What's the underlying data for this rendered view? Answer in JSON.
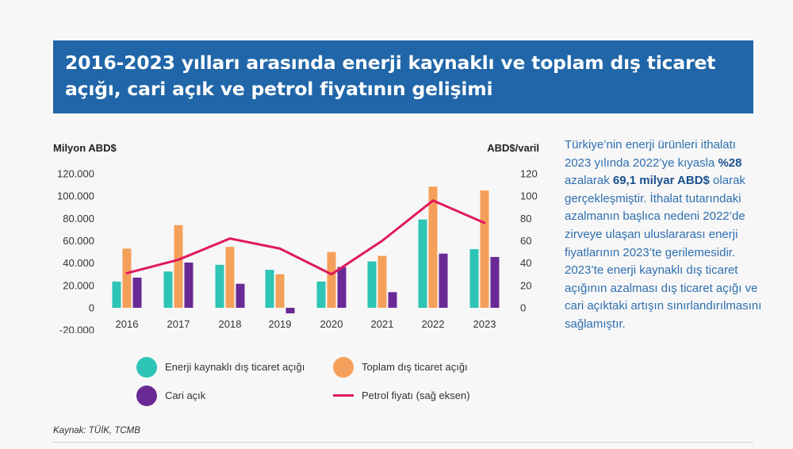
{
  "title": "2016-2023 yılları arasında enerji kaynaklı ve toplam dış ticaret açığı, cari açık ve petrol fiyatının gelişimi",
  "side_text": {
    "p1": "Türkiye’nin enerji ürünleri ithalatı 2023 yılında 2022’ye kıyasla ",
    "b1": "%28",
    "p2": " azalarak ",
    "b2": "69,1 milyar ABD$",
    "p3": " olarak gerçekleşmiştir. İthalat tutarındaki azalmanın başlıca nedeni 2022’de zirveye ulaşan uluslararası enerji fiyatlarının 2023’te gerilemesidir. 2023’te enerji kaynaklı dış ticaret açığının azalması dış ticaret açığı ve cari açıktaki artışın sınırlandırılmasını sağlamıştır."
  },
  "source": "Kaynak: TÜİK, TCMB",
  "colors": {
    "banner": "#2066a8",
    "energy": "#2ec4b6",
    "total": "#f5a05a",
    "current": "#6a2a96",
    "oil": "#e0195e"
  },
  "chart_data": {
    "type": "bar",
    "categories": [
      "2016",
      "2017",
      "2018",
      "2019",
      "2020",
      "2021",
      "2022",
      "2023"
    ],
    "ylabel": "Milyon ABD$",
    "y2label": "ABD$/varil",
    "ylim": [
      -20000,
      120000
    ],
    "y2lim": [
      0,
      120
    ],
    "yticks": [
      "120.000",
      "100.000",
      "80.000",
      "60.000",
      "40.000",
      "20.000",
      "0",
      "-20.000"
    ],
    "y2ticks": [
      "120",
      "100",
      "80",
      "60",
      "40",
      "20",
      "0"
    ],
    "grid": false,
    "legend_position": "bottom",
    "series": [
      {
        "name": "Enerji kaynaklı dış ticaret açığı",
        "type": "bar",
        "values": [
          23500,
          32500,
          38500,
          34000,
          23500,
          41500,
          79000,
          52500
        ]
      },
      {
        "name": "Toplam dış ticaret açığı",
        "type": "bar",
        "values": [
          53000,
          74000,
          54500,
          30000,
          50000,
          46500,
          108500,
          105000
        ]
      },
      {
        "name": "Cari açık",
        "type": "bar",
        "values": [
          27000,
          40500,
          21500,
          -5000,
          36500,
          14000,
          48500,
          45500
        ]
      },
      {
        "name": "Petrol fiyatı (sağ eksen)",
        "type": "line",
        "axis": "right",
        "values": [
          31,
          43,
          62,
          53,
          30,
          60,
          96,
          76
        ]
      }
    ]
  }
}
